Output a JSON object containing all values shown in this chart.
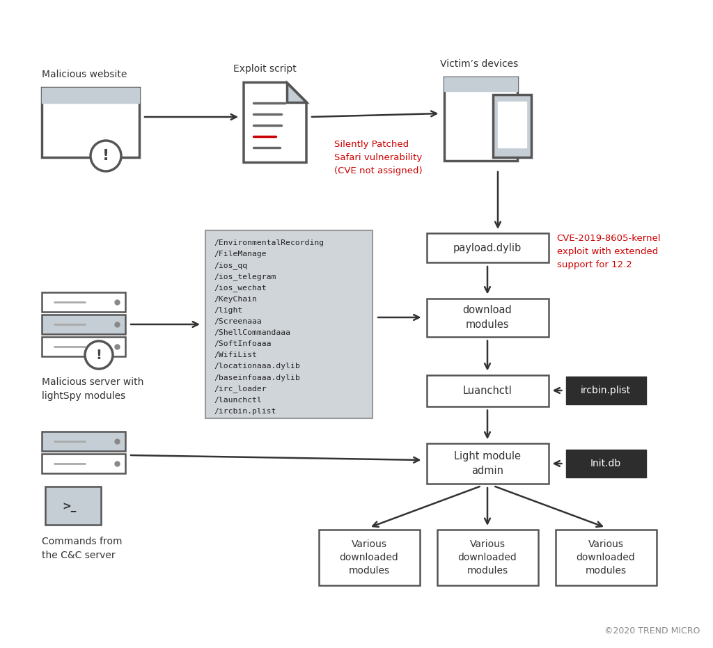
{
  "bg_color": "#ffffff",
  "title_color": "#333333",
  "red_color": "#cc0000",
  "dark_color": "#2d2d2d",
  "gray_icon_fill": "#c5cdd5",
  "gray_icon_stroke": "#555555",
  "box_fill": "#ffffff",
  "box_stroke": "#555555",
  "dark_box_fill": "#2d2d2d",
  "dark_box_text": "#ffffff",
  "list_box_fill": "#d0d5da",
  "list_box_stroke": "#999999",
  "arrow_color": "#2d2d2d",
  "watermark": "©2020 TREND MICRO",
  "labels": {
    "malicious_website": "Malicious website",
    "exploit_script": "Exploit script",
    "victims_devices": "Victim’s devices",
    "malicious_server": "Malicious server with\nlightSpy modules",
    "commands_cc": "Commands from\nthe C&C server",
    "payload": "payload.dylib",
    "download": "download\nmodules",
    "luanchctl": "Luanchctl",
    "ircbin": "ircbin.plist",
    "light_module": "Light module\nadmin",
    "init_db": "Init.db",
    "various": "Various\ndownloaded\nmodules",
    "safari_vuln": "Silently Patched\nSafari vulnerability\n(CVE not assigned)",
    "cve_note": "CVE-2019-8605-kernel\nexploit with extended\nsupport for 12.2"
  },
  "modules_list": [
    "/EnvironmentalRecording",
    "/FileManage",
    "/ios_qq",
    "/ios_telegram",
    "/ios_wechat",
    "/KeyChain",
    "/light",
    "/Screenaaa",
    "/ShellCommandaaa",
    "/SoftInfoaaa",
    "/WifiList",
    "/locationaaa.dylib",
    "/baseinfoaaa.dylib",
    "/irc_loader",
    "/launchctl",
    "/ircbin.plist"
  ]
}
